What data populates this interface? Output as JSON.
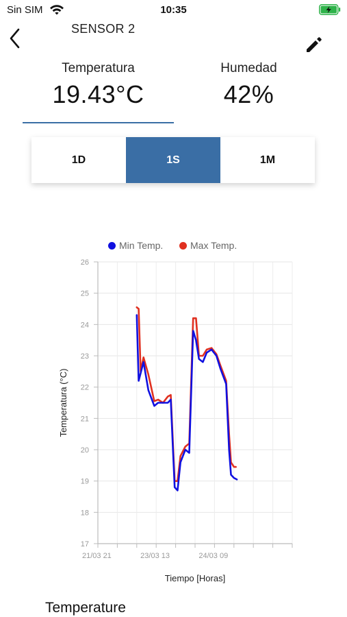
{
  "status": {
    "carrier": "Sin SIM",
    "time": "10:35"
  },
  "nav": {
    "title": "SENSOR 2"
  },
  "readings": {
    "temperature_label": "Temperatura",
    "temperature_value": "19.43°C",
    "humidity_label": "Humedad",
    "humidity_value": "42%"
  },
  "ranges": [
    {
      "label": "1D",
      "active": false
    },
    {
      "label": "1S",
      "active": true
    },
    {
      "label": "1M",
      "active": false
    }
  ],
  "colors": {
    "accent": "#3a6ea5",
    "min_series": "#1010e0",
    "max_series": "#e03020",
    "battery": "#2fb34a"
  },
  "chart_data": {
    "type": "line",
    "title": "",
    "xlabel": "Tiempo [Horas]",
    "ylabel": "Temperatura (°C)",
    "ylim": [
      17,
      26
    ],
    "yticks": [
      17,
      18,
      19,
      20,
      21,
      22,
      23,
      24,
      25,
      26
    ],
    "xtick_labels": [
      "21/03 21",
      "23/03 13",
      "24/03 09"
    ],
    "xlim": [
      0,
      10
    ],
    "xticks": [
      0,
      1,
      2,
      3,
      4,
      5,
      6,
      7,
      8,
      9,
      10
    ],
    "grid": true,
    "legend_position": "top",
    "series": [
      {
        "name": "Min Temp.",
        "color": "#1010e0",
        "x": [
          2.0,
          2.1,
          2.35,
          2.6,
          2.9,
          3.1,
          3.35,
          3.6,
          3.75,
          3.85,
          3.95,
          4.1,
          4.25,
          4.5,
          4.7,
          4.9,
          5.05,
          5.2,
          5.4,
          5.6,
          5.85,
          6.1,
          6.3,
          6.6,
          6.75,
          6.85,
          7.0,
          7.15
        ],
        "y": [
          24.3,
          22.2,
          22.8,
          21.9,
          21.4,
          21.5,
          21.5,
          21.5,
          21.6,
          20.2,
          18.8,
          18.7,
          19.6,
          20.0,
          19.9,
          23.8,
          23.5,
          22.9,
          22.8,
          23.1,
          23.2,
          23.0,
          22.6,
          22.1,
          20.0,
          19.2,
          19.1,
          19.05
        ]
      },
      {
        "name": "Max Temp.",
        "color": "#e03020",
        "x": [
          2.0,
          2.1,
          2.2,
          2.35,
          2.6,
          2.9,
          3.1,
          3.35,
          3.6,
          3.75,
          3.85,
          3.95,
          4.1,
          4.25,
          4.5,
          4.7,
          4.9,
          5.05,
          5.2,
          5.4,
          5.6,
          5.85,
          6.1,
          6.3,
          6.6,
          6.75,
          6.85,
          7.0,
          7.1
        ],
        "y": [
          24.55,
          24.5,
          22.5,
          22.95,
          22.4,
          21.55,
          21.6,
          21.5,
          21.7,
          21.75,
          20.4,
          19.0,
          19.0,
          19.8,
          20.1,
          20.2,
          24.2,
          24.2,
          23.0,
          23.0,
          23.2,
          23.25,
          23.05,
          22.7,
          22.2,
          20.5,
          19.6,
          19.45,
          19.45
        ]
      }
    ]
  },
  "sections": {
    "temperature_title": "Temperature"
  }
}
